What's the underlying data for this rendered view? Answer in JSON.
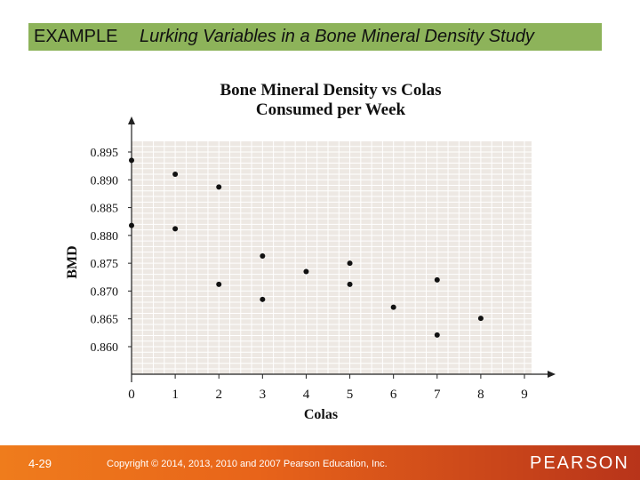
{
  "header": {
    "tag": "EXAMPLE",
    "title": "Lurking Variables in a Bone Mineral Density Study"
  },
  "footer": {
    "slide_number": "4-29",
    "copyright": "Copyright © 2014, 2013, 2010 and 2007 Pearson Education, Inc.",
    "logo_text": "PEARSON"
  },
  "colors": {
    "header_green": "#8db35a",
    "plot_background": "#ede8e3",
    "footer_orange": "#e8641a"
  },
  "chart_data": {
    "type": "scatter",
    "title_line1": "Bone Mineral Density vs Colas",
    "title_line2": "Consumed per Week",
    "xlabel": "Colas",
    "ylabel": "BMD",
    "xlim": [
      0,
      9
    ],
    "ylim": [
      0.855,
      0.899
    ],
    "x_ticks": [
      0,
      1,
      2,
      3,
      4,
      5,
      6,
      7,
      8,
      9
    ],
    "y_ticks": [
      0.895,
      0.89,
      0.885,
      0.88,
      0.875,
      0.87,
      0.865,
      0.86
    ],
    "y_tick_labels": [
      "0.895",
      "0.890",
      "0.885",
      "0.880",
      "0.875",
      "0.870",
      "0.865",
      "0.860"
    ],
    "grid": true,
    "points": [
      {
        "x": 0,
        "y": 0.8935
      },
      {
        "x": 0,
        "y": 0.8818
      },
      {
        "x": 1,
        "y": 0.891
      },
      {
        "x": 1,
        "y": 0.8812
      },
      {
        "x": 2,
        "y": 0.8887
      },
      {
        "x": 2,
        "y": 0.8712
      },
      {
        "x": 3,
        "y": 0.8763
      },
      {
        "x": 3,
        "y": 0.8685
      },
      {
        "x": 4,
        "y": 0.8735
      },
      {
        "x": 5,
        "y": 0.875
      },
      {
        "x": 5,
        "y": 0.8712
      },
      {
        "x": 6,
        "y": 0.8671
      },
      {
        "x": 7,
        "y": 0.872
      },
      {
        "x": 7,
        "y": 0.8621
      },
      {
        "x": 8,
        "y": 0.8651
      }
    ]
  }
}
